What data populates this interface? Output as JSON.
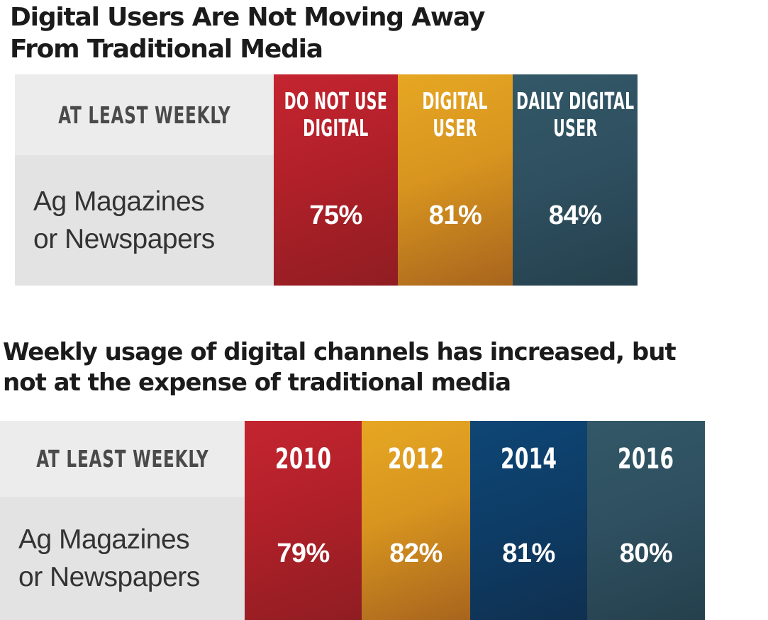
{
  "title_top": [
    "Digital Users Are Not Moving Away",
    "From Traditional Media"
  ],
  "title_bottom": [
    "Weekly usage of digital channels has increased, but",
    "not at the expense of traditional media"
  ],
  "colors": {
    "red": "#b32129",
    "gold": "#dc9a22",
    "navy": "#0d3d68",
    "slate": "#2f5060",
    "label_head_bg": "#ececec",
    "label_body_bg": "#e3e3e3"
  },
  "chart_data": [
    {
      "type": "table",
      "row_header": "AT LEAST WEEKLY",
      "row_label": [
        "Ag Magazines",
        "or Newspapers"
      ],
      "columns": [
        {
          "label": [
            "DO NOT USE",
            "DIGITAL"
          ],
          "value_text": "75%",
          "value": 75,
          "color": "red"
        },
        {
          "label": [
            "DIGITAL",
            "USER"
          ],
          "value_text": "81%",
          "value": 81,
          "color": "gold"
        },
        {
          "label": [
            "DAILY DIGITAL",
            "USER"
          ],
          "value_text": "84%",
          "value": 84,
          "color": "slate"
        }
      ]
    },
    {
      "type": "table",
      "row_header": "AT LEAST WEEKLY",
      "row_label": [
        "Ag Magazines",
        "or Newspapers"
      ],
      "columns": [
        {
          "label": [
            "2010"
          ],
          "value_text": "79%",
          "value": 79,
          "color": "red"
        },
        {
          "label": [
            "2012"
          ],
          "value_text": "82%",
          "value": 82,
          "color": "gold"
        },
        {
          "label": [
            "2014"
          ],
          "value_text": "81%",
          "value": 81,
          "color": "navy"
        },
        {
          "label": [
            "2016"
          ],
          "value_text": "80%",
          "value": 80,
          "color": "slate"
        }
      ]
    }
  ]
}
